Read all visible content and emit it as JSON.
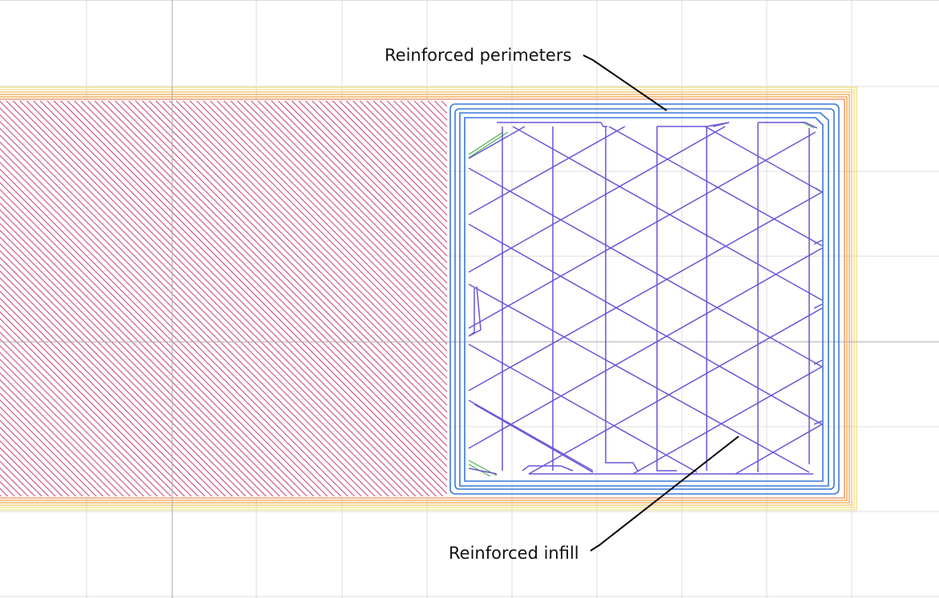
{
  "callouts": {
    "perimeters": "Reinforced perimeters",
    "infill": "Reinforced infill"
  },
  "colors": {
    "background": "#ffffff",
    "grid": "#dcdcdc",
    "axis": "#a8a8a8",
    "solid_fill_hatch": "#c8406a",
    "outer_perimeter_orange": "#f0a040",
    "outer_perimeter_yellow": "#f2df80",
    "reinforced_perimeter": "#3a78d8",
    "reinforced_infill": "#6a55d8",
    "bridge_green": "#50b050",
    "callout_line": "#000000"
  },
  "icons": [
    "solid-infill-hatch",
    "perimeter-loop",
    "infill-zigzag",
    "callout-leader"
  ]
}
